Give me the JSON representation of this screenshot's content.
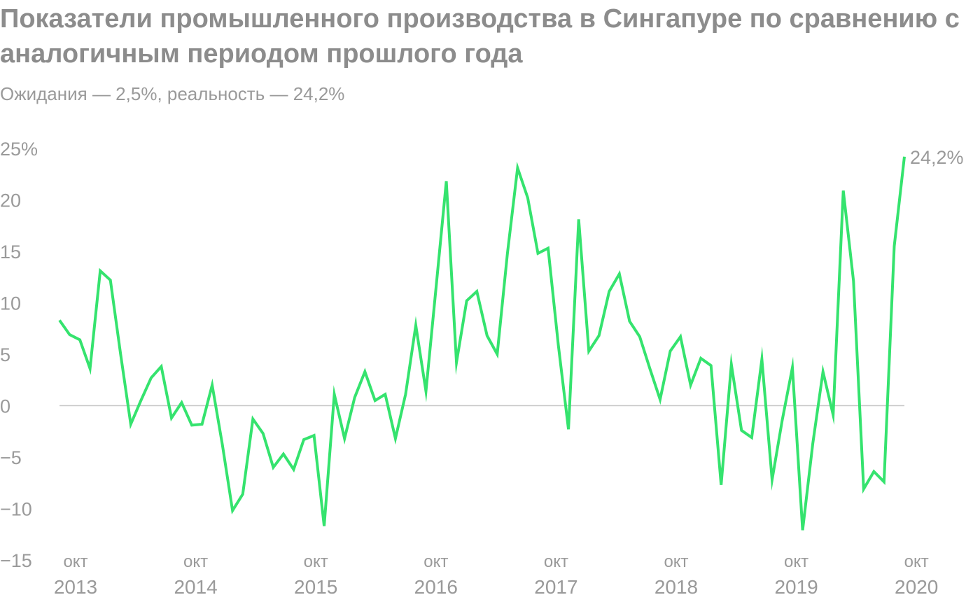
{
  "title": "Показатели промышленного производства в Сингапуре по сравнению с аналогичным периодом прошлого года",
  "subtitle": "Ожидания — 2,5%, реальность — 24,2%",
  "colors": {
    "line": "#35e36e",
    "axis_text": "#9a9a9a",
    "title": "#8c8c8c",
    "zero_line": "#c8c8c8"
  },
  "chart_data": {
    "type": "line",
    "y_unit": "%",
    "ylim": [
      -15,
      25
    ],
    "yticks": [
      {
        "value": 25,
        "label": "25%"
      },
      {
        "value": 20,
        "label": "20"
      },
      {
        "value": 15,
        "label": "15"
      },
      {
        "value": 10,
        "label": "10"
      },
      {
        "value": 5,
        "label": "5"
      },
      {
        "value": 0,
        "label": "0"
      },
      {
        "value": -5,
        "label": "−5"
      },
      {
        "value": -10,
        "label": "−10"
      },
      {
        "value": -15,
        "label": "−15"
      }
    ],
    "xticks": [
      {
        "month": "окт",
        "year": "2013"
      },
      {
        "month": "окт",
        "year": "2014"
      },
      {
        "month": "окт",
        "year": "2015"
      },
      {
        "month": "окт",
        "year": "2016"
      },
      {
        "month": "окт",
        "year": "2017"
      },
      {
        "month": "окт",
        "year": "2018"
      },
      {
        "month": "окт",
        "year": "2019"
      },
      {
        "month": "окт",
        "year": "2020"
      }
    ],
    "series": [
      {
        "values": [
          8.3,
          6.9,
          6.4,
          3.6,
          13.1,
          12.2,
          5.0,
          -1.8,
          0.5,
          2.7,
          3.8,
          -1.2,
          0.3,
          -1.9,
          -1.8,
          2.0,
          -3.8,
          -10.2,
          -8.6,
          -1.3,
          -2.7,
          -6.0,
          -4.7,
          -6.2,
          -3.3,
          -2.9,
          -11.7,
          1.1,
          -3.2,
          0.8,
          3.3,
          0.5,
          1.1,
          -3.2,
          1.1,
          7.8,
          1.4,
          11.6,
          21.8,
          4.2,
          10.2,
          11.1,
          6.8,
          5.0,
          14.8,
          23.1,
          20.2,
          14.8,
          15.3,
          5.9,
          -2.3,
          18.1,
          5.3,
          6.8,
          11.1,
          12.8,
          8.2,
          6.7,
          3.6,
          0.6,
          5.3,
          6.7,
          2.0,
          4.6,
          3.9,
          -7.7,
          4.0,
          -2.4,
          -3.1,
          4.5,
          -7.2,
          -1.4,
          3.7,
          -12.1,
          -3.7,
          3.3,
          -0.9,
          20.9,
          12.1,
          -8.1,
          -6.4,
          -7.4,
          15.5,
          24.2
        ]
      }
    ],
    "last_value_label": "24,2%",
    "grid": false
  }
}
